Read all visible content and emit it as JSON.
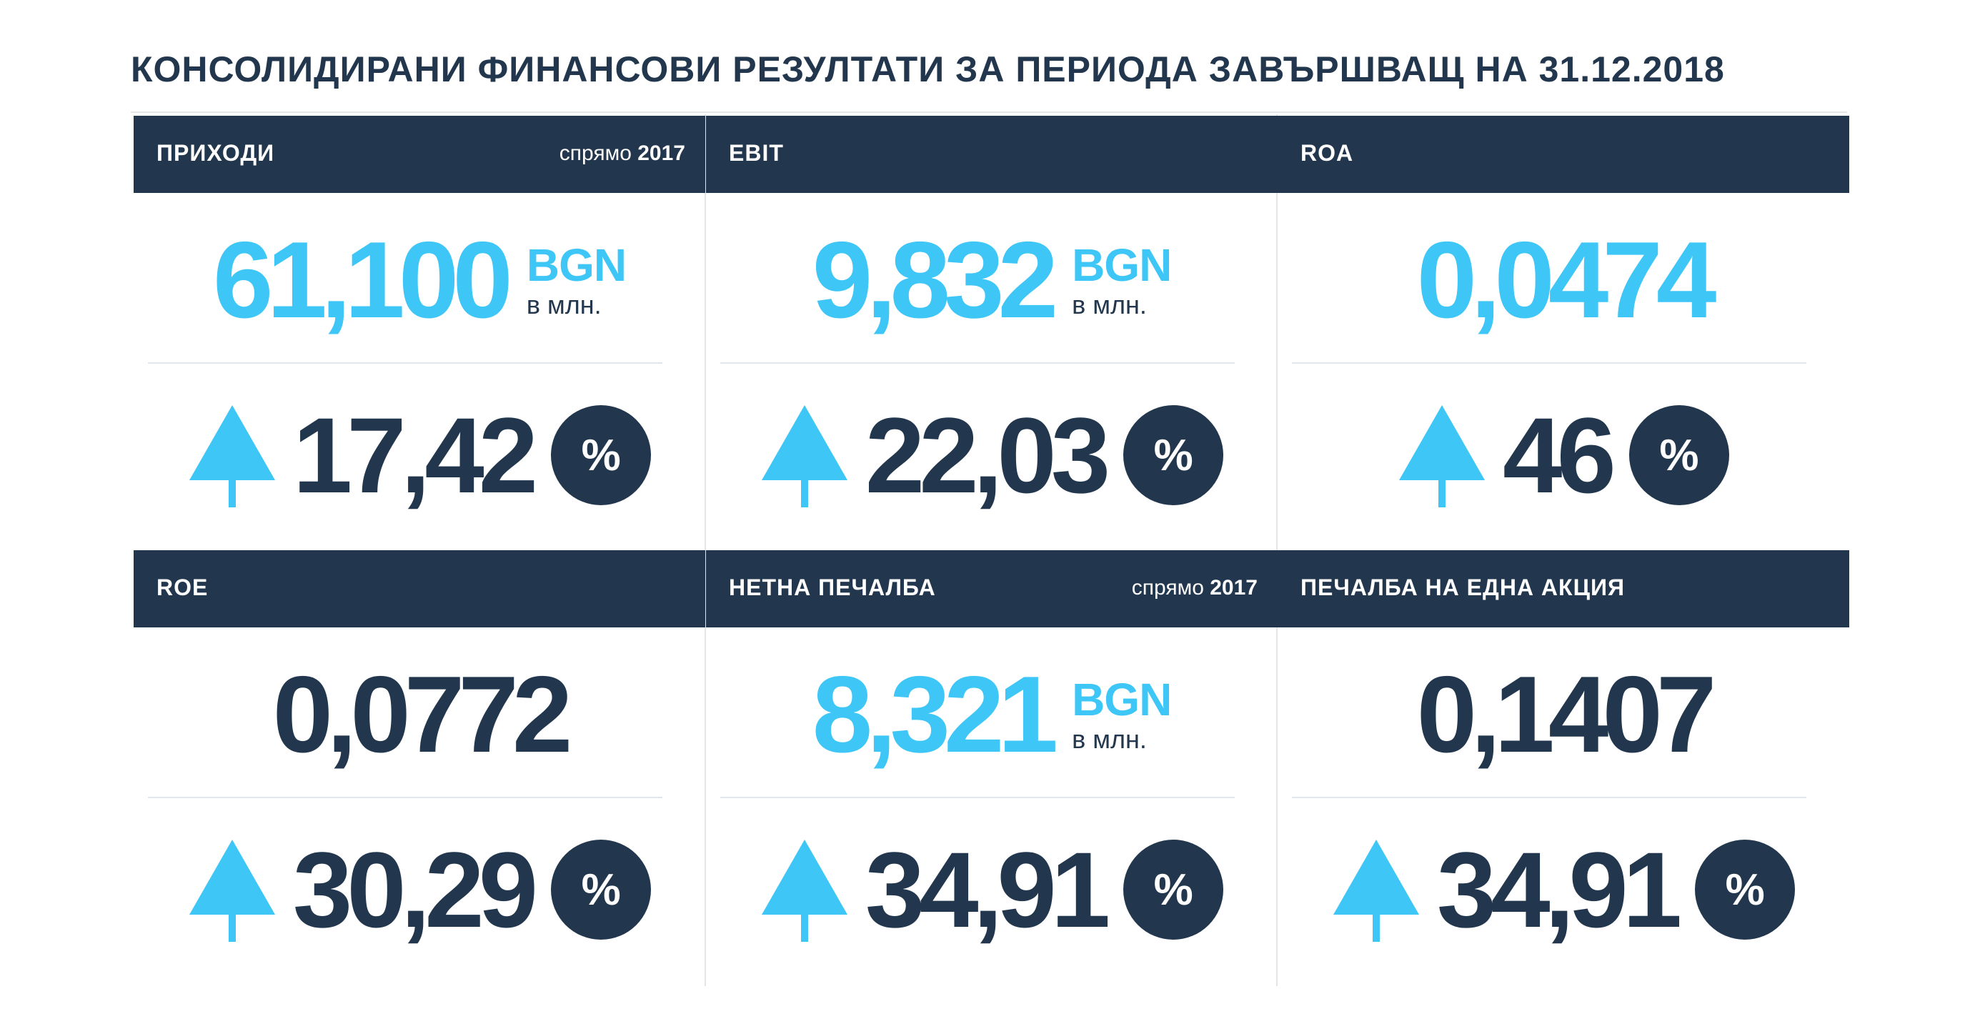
{
  "title": "КОНСОЛИДИРАНИ ФИНАНСОВИ РЕЗУЛТАТИ ЗА ПЕРИОДА ЗАВЪРШВАЩ НА 31.12.2018",
  "colors": {
    "dark": "#22374d",
    "accent": "#3ec6f7",
    "rule": "#e3e6e9"
  },
  "cards": [
    {
      "label": "ПРИХОДИ",
      "compare_text": "спрямо ",
      "compare_year": "2017",
      "value": "61,100",
      "unit": "BGN",
      "scale": "в млн.",
      "change": "17,42",
      "percent": "%",
      "trend_icon": "arrow-up-icon"
    },
    {
      "label": "EBIT",
      "value": "9,832",
      "unit": "BGN",
      "scale": "в млн.",
      "change": "22,03",
      "percent": "%",
      "trend_icon": "arrow-up-icon"
    },
    {
      "label": "ROA",
      "value": "0,0474",
      "change": "46",
      "percent": "%",
      "trend_icon": "arrow-up-icon"
    },
    {
      "label": "ROE",
      "value": "0,0772",
      "change": "30,29",
      "percent": "%",
      "trend_icon": "arrow-up-icon"
    },
    {
      "label": "НЕТНА ПЕЧАЛБА",
      "compare_text": "спрямо ",
      "compare_year": "2017",
      "value": "8,321",
      "unit": "BGN",
      "scale": "в млн.",
      "change": "34,91",
      "percent": "%",
      "trend_icon": "arrow-up-icon"
    },
    {
      "label": "ПЕЧАЛБА НА ЕДНА АКЦИЯ",
      "value": "0,1407",
      "change": "34,91",
      "percent": "%",
      "trend_icon": "arrow-up-icon"
    }
  ]
}
